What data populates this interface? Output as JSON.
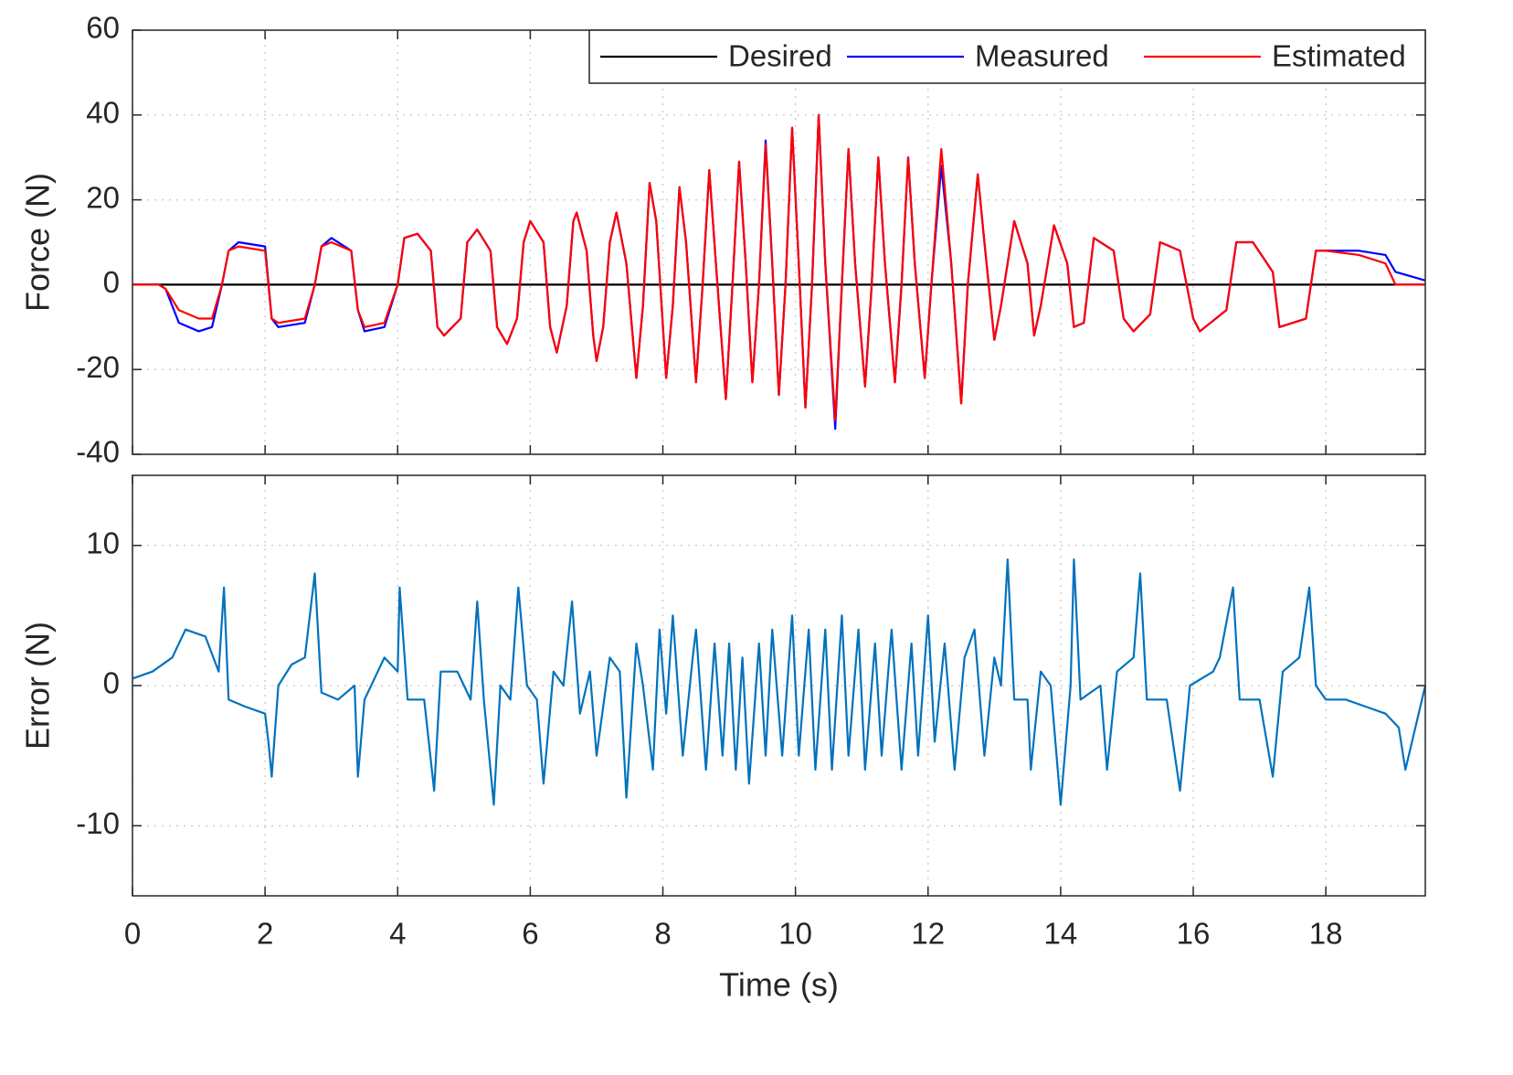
{
  "chart_data": [
    {
      "type": "line",
      "ylabel": "Force (N)",
      "xlim": [
        0,
        19.5
      ],
      "xticks": [
        0,
        2,
        4,
        6,
        8,
        10,
        12,
        14,
        16,
        18
      ],
      "show_xtick_labels": false,
      "ylim": [
        -40,
        60
      ],
      "yticks": [
        -40,
        -20,
        0,
        20,
        40,
        60
      ],
      "grid": true,
      "legend": "upper right",
      "x": [
        0,
        0.4,
        0.5,
        0.7,
        1.0,
        1.2,
        1.35,
        1.45,
        1.6,
        2.0,
        2.1,
        2.2,
        2.6,
        2.75,
        2.85,
        3.0,
        3.3,
        3.4,
        3.5,
        3.8,
        4.0,
        4.1,
        4.3,
        4.5,
        4.6,
        4.7,
        4.95,
        5.05,
        5.2,
        5.4,
        5.5,
        5.65,
        5.8,
        5.9,
        6.0,
        6.2,
        6.3,
        6.4,
        6.55,
        6.65,
        6.7,
        6.85,
        6.95,
        7.0,
        7.1,
        7.2,
        7.3,
        7.45,
        7.6,
        7.7,
        7.8,
        7.9,
        8.05,
        8.15,
        8.25,
        8.35,
        8.5,
        8.6,
        8.7,
        8.8,
        8.95,
        9.05,
        9.15,
        9.25,
        9.35,
        9.45,
        9.55,
        9.65,
        9.75,
        9.85,
        9.95,
        10.05,
        10.15,
        10.25,
        10.35,
        10.45,
        10.6,
        10.7,
        10.8,
        10.9,
        11.05,
        11.15,
        11.25,
        11.35,
        11.5,
        11.6,
        11.7,
        11.8,
        11.95,
        12.05,
        12.2,
        12.35,
        12.5,
        12.6,
        12.75,
        12.85,
        13.0,
        13.1,
        13.3,
        13.5,
        13.6,
        13.7,
        13.9,
        14.1,
        14.2,
        14.35,
        14.5,
        14.8,
        14.95,
        15.1,
        15.35,
        15.5,
        15.8,
        16.0,
        16.1,
        16.5,
        16.65,
        16.9,
        17.2,
        17.3,
        17.7,
        17.85,
        18.0,
        18.5,
        18.9,
        19.05,
        19.5
      ],
      "series": [
        {
          "name": "Desired",
          "color": "#000000",
          "x": [
            0,
            19.5
          ],
          "values": [
            0,
            0
          ]
        },
        {
          "name": "Measured",
          "color": "#0000ff",
          "values": [
            0,
            0,
            -1,
            -9,
            -11,
            -10,
            0,
            8,
            10,
            9,
            -8,
            -10,
            -9,
            0,
            9,
            11,
            8,
            -6,
            -11,
            -10,
            0,
            11,
            12,
            8,
            -10,
            -12,
            -8,
            10,
            13,
            8,
            -10,
            -14,
            -8,
            10,
            15,
            10,
            -10,
            -16,
            -5,
            15,
            17,
            8,
            -12,
            -18,
            -10,
            10,
            17,
            5,
            -22,
            -5,
            24,
            15,
            -22,
            -5,
            23,
            10,
            -23,
            0,
            27,
            5,
            -27,
            0,
            29,
            5,
            -23,
            0,
            34,
            5,
            -26,
            0,
            37,
            5,
            -29,
            0,
            40,
            5,
            -34,
            0,
            32,
            5,
            -24,
            0,
            30,
            5,
            -23,
            0,
            30,
            5,
            -22,
            0,
            28,
            5,
            -28,
            0,
            26,
            10,
            -13,
            -5,
            15,
            5,
            -12,
            -5,
            14,
            5,
            -10,
            -9,
            11,
            8,
            -8,
            -11,
            -7,
            10,
            8,
            -8,
            -11,
            -6,
            10,
            10,
            3,
            -10,
            -8,
            8,
            8,
            8,
            7,
            3,
            1
          ]
        },
        {
          "name": "Estimated",
          "color": "#ff0000",
          "values": [
            0,
            0,
            -1,
            -6,
            -8,
            -8,
            0,
            8,
            9,
            8,
            -8,
            -9,
            -8,
            0,
            9,
            10,
            8,
            -6,
            -10,
            -9,
            0,
            11,
            12,
            8,
            -10,
            -12,
            -8,
            10,
            13,
            8,
            -10,
            -14,
            -8,
            10,
            15,
            10,
            -10,
            -16,
            -5,
            15,
            17,
            8,
            -12,
            -18,
            -10,
            10,
            17,
            5,
            -22,
            -5,
            24,
            15,
            -22,
            -5,
            23,
            10,
            -23,
            0,
            27,
            5,
            -27,
            0,
            29,
            5,
            -23,
            0,
            33,
            5,
            -26,
            0,
            37,
            5,
            -29,
            0,
            40,
            5,
            -32,
            0,
            32,
            5,
            -24,
            0,
            30,
            5,
            -23,
            0,
            30,
            5,
            -22,
            0,
            32,
            5,
            -28,
            0,
            26,
            10,
            -13,
            -5,
            15,
            5,
            -12,
            -5,
            14,
            5,
            -10,
            -9,
            11,
            8,
            -8,
            -11,
            -7,
            10,
            8,
            -8,
            -11,
            -6,
            10,
            10,
            3,
            -10,
            -8,
            8,
            8,
            7,
            5,
            0,
            0
          ]
        }
      ]
    },
    {
      "type": "line",
      "ylabel": "Error (N)",
      "xlabel": "Time (s)",
      "xlim": [
        0,
        19.5
      ],
      "xticks": [
        0,
        2,
        4,
        6,
        8,
        10,
        12,
        14,
        16,
        18
      ],
      "show_xtick_labels": true,
      "ylim": [
        -15,
        15
      ],
      "yticks": [
        -10,
        0,
        10
      ],
      "grid": true,
      "x": [
        0,
        0.3,
        0.6,
        0.8,
        1.1,
        1.3,
        1.38,
        1.45,
        1.7,
        2.0,
        2.05,
        2.1,
        2.2,
        2.4,
        2.6,
        2.75,
        2.85,
        3.1,
        3.35,
        3.4,
        3.5,
        3.8,
        4.0,
        4.03,
        4.15,
        4.4,
        4.55,
        4.65,
        4.9,
        5.1,
        5.2,
        5.3,
        5.45,
        5.55,
        5.7,
        5.82,
        5.95,
        6.1,
        6.2,
        6.35,
        6.5,
        6.63,
        6.75,
        6.9,
        7.0,
        7.2,
        7.35,
        7.45,
        7.6,
        7.7,
        7.85,
        7.95,
        8.05,
        8.15,
        8.3,
        8.45,
        8.5,
        8.65,
        8.78,
        8.9,
        9.0,
        9.1,
        9.2,
        9.3,
        9.45,
        9.55,
        9.65,
        9.8,
        9.95,
        10.05,
        10.2,
        10.3,
        10.45,
        10.55,
        10.7,
        10.8,
        10.95,
        11.05,
        11.2,
        11.3,
        11.45,
        11.6,
        11.75,
        11.85,
        12.0,
        12.1,
        12.25,
        12.4,
        12.55,
        12.7,
        12.85,
        13.0,
        13.1,
        13.2,
        13.3,
        13.5,
        13.55,
        13.7,
        13.85,
        14.0,
        14.15,
        14.2,
        14.3,
        14.6,
        14.7,
        14.85,
        15.1,
        15.2,
        15.3,
        15.6,
        15.8,
        15.95,
        16.3,
        16.4,
        16.6,
        16.7,
        17.0,
        17.2,
        17.35,
        17.6,
        17.75,
        17.85,
        18.0,
        18.3,
        18.6,
        18.9,
        19.1,
        19.2,
        19.35,
        19.5
      ],
      "series": [
        {
          "name": "Error",
          "color": "#0072bd",
          "values": [
            0.5,
            1,
            2,
            4,
            3.5,
            1,
            7,
            -1,
            -1.5,
            -2,
            -4,
            -6.5,
            0,
            1.5,
            2,
            8,
            -0.5,
            -1,
            0,
            -6.5,
            -1,
            2,
            1,
            7,
            -1,
            -1,
            -7.5,
            1,
            1,
            -1,
            6,
            -1,
            -8.5,
            0,
            -1,
            7,
            0,
            -1,
            -7,
            1,
            0,
            6,
            -2,
            1,
            -5,
            2,
            1,
            -8,
            3,
            0,
            -6,
            4,
            -2,
            5,
            -5,
            2,
            4,
            -6,
            3,
            -5,
            3,
            -6,
            2,
            -7,
            3,
            -5,
            4,
            -5,
            5,
            -5,
            4,
            -6,
            4,
            -6,
            5,
            -5,
            4,
            -6,
            3,
            -5,
            4,
            -6,
            3,
            -5,
            5,
            -4,
            3,
            -6,
            2,
            4,
            -5,
            2,
            0,
            9,
            -1,
            -1,
            -6,
            1,
            0,
            -8.5,
            0,
            9,
            -1,
            0,
            -6,
            1,
            2,
            8,
            -1,
            -1,
            -7.5,
            0,
            1,
            2,
            7,
            -1,
            -1,
            -6.5,
            1,
            2,
            7,
            0,
            -1,
            -1,
            -1.5,
            -2,
            -3,
            -6,
            -3,
            0
          ]
        }
      ]
    }
  ]
}
